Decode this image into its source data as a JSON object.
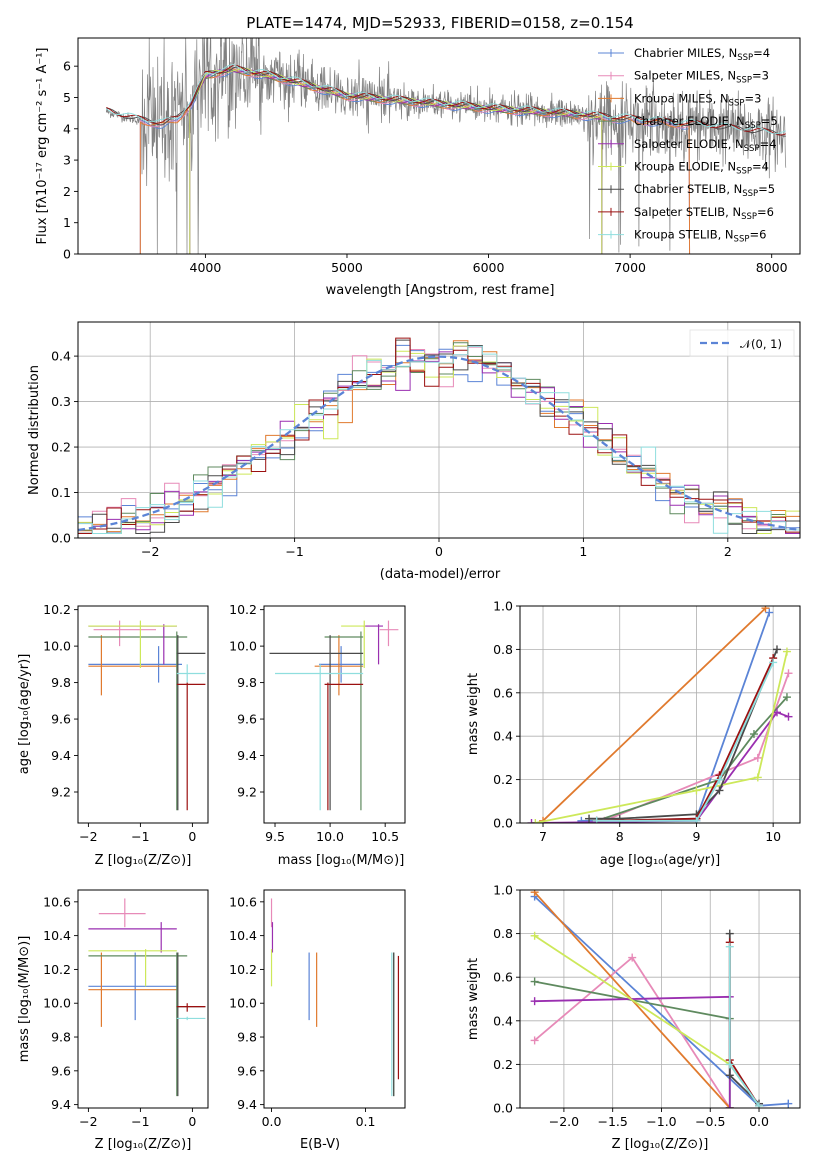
{
  "title": "PLATE=1474, MJD=52933, FIBERID=0158, z=0.154",
  "colors": {
    "Chabrier MILES": "#5b84d6",
    "Salpeter MILES": "#e78ab8",
    "Kroupa MILES": "#e07a2e",
    "Chabrier ELODIE": "#5f8a5f",
    "Salpeter ELODIE": "#9a2fb0",
    "Kroupa ELODIE": "#cde85a",
    "Chabrier STELIB": "#4a4a4a",
    "Salpeter STELIB": "#9b1010",
    "Kroupa STELIB": "#8fdede",
    "data": "#808080",
    "gaussian": "#5b84d6"
  },
  "chart_data": [
    {
      "id": "spectrum",
      "type": "line",
      "xlabel": "wavelength [Angstrom, rest frame]",
      "ylabel": "Flux [fλ10⁻¹⁷ erg cm⁻² s⁻¹ A⁻¹]",
      "xlim": [
        3100,
        8200
      ],
      "ylim": [
        0,
        6.9
      ],
      "xticks": [
        "4000",
        "5000",
        "6000",
        "7000",
        "8000"
      ],
      "yticks": [
        "0",
        "1",
        "2",
        "3",
        "4",
        "5",
        "6"
      ],
      "legend_position": "right",
      "legend": [
        {
          "base": "Chabrier MILES, N",
          "sub": "SSP",
          "tail": "=4",
          "color_key": "Chabrier MILES"
        },
        {
          "base": "Salpeter MILES, N",
          "sub": "SSP",
          "tail": "=3",
          "color_key": "Salpeter MILES"
        },
        {
          "base": "Kroupa MILES, N",
          "sub": "SSP",
          "tail": "=3",
          "color_key": "Kroupa MILES"
        },
        {
          "base": "Chabrier ELODIE, N",
          "sub": "SSP",
          "tail": "=5",
          "color_key": "Chabrier ELODIE"
        },
        {
          "base": "Salpeter ELODIE, N",
          "sub": "SSP",
          "tail": "=4",
          "color_key": "Salpeter ELODIE"
        },
        {
          "base": "Kroupa ELODIE, N",
          "sub": "SSP",
          "tail": "=4",
          "color_key": "Kroupa ELODIE"
        },
        {
          "base": "Chabrier STELIB, N",
          "sub": "SSP",
          "tail": "=5",
          "color_key": "Chabrier STELIB"
        },
        {
          "base": "Salpeter STELIB, N",
          "sub": "SSP",
          "tail": "=6",
          "color_key": "Salpeter STELIB"
        },
        {
          "base": "Kroupa STELIB, N",
          "sub": "SSP",
          "tail": "=6",
          "color_key": "Kroupa STELIB"
        }
      ],
      "continuum": [
        [
          3300,
          4.55
        ],
        [
          3500,
          4.3
        ],
        [
          3700,
          4.15
        ],
        [
          3800,
          4.3
        ],
        [
          3900,
          4.8
        ],
        [
          4000,
          5.7
        ],
        [
          4200,
          5.9
        ],
        [
          4500,
          5.65
        ],
        [
          4800,
          5.3
        ],
        [
          5000,
          5.05
        ],
        [
          5500,
          4.85
        ],
        [
          6000,
          4.65
        ],
        [
          6500,
          4.5
        ],
        [
          7000,
          4.3
        ],
        [
          7500,
          4.1
        ],
        [
          8000,
          3.85
        ],
        [
          8100,
          3.8
        ]
      ]
    },
    {
      "id": "residuals",
      "type": "bar",
      "xlabel": "(data-model)/error",
      "ylabel": "Normed distribution",
      "xlim": [
        -2.5,
        2.5
      ],
      "ylim": [
        0,
        0.475
      ],
      "xticks": [
        "−2",
        "−1",
        "0",
        "1",
        "2"
      ],
      "yticks": [
        "0.0",
        "0.1",
        "0.2",
        "0.3",
        "0.4"
      ],
      "legend": "𝒩(0, 1)",
      "grid": true
    },
    {
      "id": "age-vs-Z",
      "type": "scatter",
      "xlabel": "Z [log₁₀(Z/Z⊙)]",
      "ylabel": "age  [log₁₀(age/yr)]",
      "xlim": [
        -2.2,
        0.3
      ],
      "ylim": [
        9.03,
        10.22
      ],
      "xticks": [
        "−2",
        "−1",
        "0"
      ],
      "yticks": [
        "9.2",
        "9.4",
        "9.6",
        "9.8",
        "10.0",
        "10.2"
      ],
      "points": [
        {
          "c": "Chabrier MILES",
          "x": -0.65,
          "xl": -2.0,
          "xh": -0.2,
          "y": 9.9,
          "yl": 9.8,
          "yh": 10.0
        },
        {
          "c": "Salpeter MILES",
          "x": -1.4,
          "xl": -1.9,
          "xh": -0.7,
          "y": 10.09,
          "yl": 10.0,
          "yh": 10.14
        },
        {
          "c": "Kroupa MILES",
          "x": -1.75,
          "xl": -2.0,
          "xh": -0.3,
          "y": 9.89,
          "yl": 9.73,
          "yh": 10.06
        },
        {
          "c": "Chabrier ELODIE",
          "x": -0.3,
          "xl": -2.0,
          "xh": -0.1,
          "y": 10.05,
          "yl": 9.1,
          "yh": 10.08
        },
        {
          "c": "Salpeter ELODIE",
          "x": -0.55,
          "xl": -2.0,
          "xh": -0.3,
          "y": 10.11,
          "yl": 9.9,
          "yh": 10.12
        },
        {
          "c": "Kroupa ELODIE",
          "x": -1.0,
          "xl": -2.0,
          "xh": -0.3,
          "y": 10.11,
          "yl": 9.88,
          "yh": 10.14
        },
        {
          "c": "Chabrier STELIB",
          "x": -0.28,
          "xl": -0.3,
          "xh": 0.25,
          "y": 9.96,
          "yl": 9.1,
          "yh": 10.06
        },
        {
          "c": "Salpeter STELIB",
          "x": -0.1,
          "xl": -0.3,
          "xh": 0.25,
          "y": 9.79,
          "yl": 9.1,
          "yh": 9.8
        },
        {
          "c": "Kroupa STELIB",
          "x": -0.1,
          "xl": -0.3,
          "xh": 0.25,
          "y": 9.85,
          "yl": 9.8,
          "yh": 9.9
        }
      ]
    },
    {
      "id": "age-vs-mass",
      "type": "scatter",
      "xlabel": "mass [log₁₀(M/M⊙)]",
      "ylabel": "",
      "xlim": [
        9.4,
        10.68
      ],
      "ylim": [
        9.03,
        10.22
      ],
      "xticks": [
        "9.5",
        "10.0",
        "10.5"
      ],
      "yticks": [
        "9.2",
        "9.4",
        "9.6",
        "9.8",
        "10.0",
        "10.2"
      ],
      "points": [
        {
          "c": "Chabrier MILES",
          "x": 10.1,
          "xl": 9.9,
          "xh": 10.3,
          "y": 9.9,
          "yl": 9.8,
          "yh": 10.0
        },
        {
          "c": "Salpeter MILES",
          "x": 10.53,
          "xl": 10.45,
          "xh": 10.62,
          "y": 10.09,
          "yl": 10.0,
          "yh": 10.14
        },
        {
          "c": "Kroupa MILES",
          "x": 10.08,
          "xl": 9.86,
          "xh": 10.3,
          "y": 9.89,
          "yl": 9.73,
          "yh": 10.06
        },
        {
          "c": "Chabrier ELODIE",
          "x": 10.28,
          "xl": 9.95,
          "xh": 10.3,
          "y": 10.05,
          "yl": 9.1,
          "yh": 10.08
        },
        {
          "c": "Salpeter ELODIE",
          "x": 10.44,
          "xl": 10.3,
          "xh": 10.48,
          "y": 10.11,
          "yl": 9.9,
          "yh": 10.12
        },
        {
          "c": "Kroupa ELODIE",
          "x": 10.31,
          "xl": 10.1,
          "xh": 10.32,
          "y": 10.11,
          "yl": 9.88,
          "yh": 10.14
        },
        {
          "c": "Chabrier STELIB",
          "x": 10.0,
          "xl": 9.45,
          "xh": 10.3,
          "y": 9.96,
          "yl": 9.1,
          "yh": 10.06
        },
        {
          "c": "Salpeter STELIB",
          "x": 9.98,
          "xl": 9.95,
          "xh": 10.3,
          "y": 9.79,
          "yl": 9.1,
          "yh": 9.8
        },
        {
          "c": "Kroupa STELIB",
          "x": 9.91,
          "xl": 9.5,
          "xh": 10.3,
          "y": 9.85,
          "yl": 9.1,
          "yh": 9.9
        }
      ]
    },
    {
      "id": "weight-vs-age",
      "type": "line",
      "xlabel": "age  [log₁₀(age/yr)]",
      "ylabel": "mass weight",
      "xlim": [
        6.7,
        10.35
      ],
      "ylim": [
        0,
        1
      ],
      "xticks": [
        "7",
        "8",
        "9",
        "10"
      ],
      "yticks": [
        "0.0",
        "0.2",
        "0.4",
        "0.6",
        "0.8",
        "1.0"
      ],
      "grid": true,
      "series": [
        {
          "c": "Chabrier MILES",
          "points": [
            [
              7.5,
              0.01
            ],
            [
              8.0,
              0.01
            ],
            [
              9.0,
              0.02
            ],
            [
              9.95,
              0.97
            ]
          ]
        },
        {
          "c": "Salpeter MILES",
          "points": [
            [
              7.8,
              0.01
            ],
            [
              9.8,
              0.3
            ],
            [
              10.2,
              0.69
            ]
          ]
        },
        {
          "c": "Kroupa MILES",
          "points": [
            [
              7.0,
              0.01
            ],
            [
              9.9,
              0.99
            ]
          ]
        },
        {
          "c": "Chabrier ELODIE",
          "points": [
            [
              7.7,
              0.01
            ],
            [
              9.3,
              0.2
            ],
            [
              9.75,
              0.41
            ],
            [
              10.18,
              0.58
            ]
          ]
        },
        {
          "c": "Salpeter ELODIE",
          "points": [
            [
              6.85,
              0.0
            ],
            [
              9.0,
              0.01
            ],
            [
              10.05,
              0.51
            ],
            [
              10.2,
              0.49
            ]
          ]
        },
        {
          "c": "Kroupa ELODIE",
          "points": [
            [
              6.9,
              0.0
            ],
            [
              9.0,
              0.15
            ],
            [
              9.8,
              0.21
            ],
            [
              10.18,
              0.79
            ]
          ]
        },
        {
          "c": "Chabrier STELIB",
          "points": [
            [
              7.6,
              0.02
            ],
            [
              8.0,
              0.02
            ],
            [
              9.0,
              0.04
            ],
            [
              9.3,
              0.15
            ],
            [
              10.05,
              0.8
            ]
          ]
        },
        {
          "c": "Salpeter STELIB",
          "points": [
            [
              7.7,
              0.01
            ],
            [
              9.0,
              0.02
            ],
            [
              9.3,
              0.22
            ],
            [
              10.0,
              0.76
            ]
          ]
        },
        {
          "c": "Kroupa STELIB",
          "points": [
            [
              7.7,
              0.01
            ],
            [
              9.0,
              0.01
            ],
            [
              9.3,
              0.2
            ],
            [
              10.0,
              0.74
            ]
          ]
        }
      ]
    },
    {
      "id": "mass-vs-Z",
      "type": "scatter",
      "xlabel": "Z [log₁₀(Z/Z⊙)]",
      "ylabel": "mass [log₁₀(M/M⊙)]",
      "xlim": [
        -2.2,
        0.3
      ],
      "ylim": [
        9.38,
        10.67
      ],
      "xticks": [
        "−2",
        "−1",
        "0"
      ],
      "yticks": [
        "9.4",
        "9.6",
        "9.8",
        "10.0",
        "10.2",
        "10.4",
        "10.6"
      ],
      "points": [
        {
          "c": "Chabrier MILES",
          "x": -1.1,
          "xl": -2.0,
          "xh": -0.3,
          "y": 10.1,
          "yl": 9.9,
          "yh": 10.3
        },
        {
          "c": "Salpeter MILES",
          "x": -1.3,
          "xl": -1.8,
          "xh": -0.9,
          "y": 10.53,
          "yl": 10.45,
          "yh": 10.62
        },
        {
          "c": "Kroupa MILES",
          "x": -1.75,
          "xl": -2.0,
          "xh": -0.3,
          "y": 10.08,
          "yl": 9.86,
          "yh": 10.3
        },
        {
          "c": "Chabrier ELODIE",
          "x": -0.3,
          "xl": -2.0,
          "xh": -0.1,
          "y": 10.28,
          "yl": 9.45,
          "yh": 10.3
        },
        {
          "c": "Salpeter ELODIE",
          "x": -0.6,
          "xl": -2.0,
          "xh": -0.3,
          "y": 10.44,
          "yl": 10.3,
          "yh": 10.48
        },
        {
          "c": "Kroupa ELODIE",
          "x": -0.9,
          "xl": -2.0,
          "xh": -0.3,
          "y": 10.31,
          "yl": 10.1,
          "yh": 10.32
        },
        {
          "c": "Chabrier STELIB",
          "x": -0.28,
          "xl": -0.3,
          "xh": 0.25,
          "y": 9.98,
          "yl": 9.45,
          "yh": 10.3
        },
        {
          "c": "Salpeter STELIB",
          "x": -0.1,
          "xl": -0.3,
          "xh": 0.25,
          "y": 9.98,
          "yl": 9.95,
          "yh": 10.0
        },
        {
          "c": "Kroupa STELIB",
          "x": -0.1,
          "xl": -0.3,
          "xh": 0.25,
          "y": 9.91,
          "yl": 9.9,
          "yh": 9.92
        }
      ]
    },
    {
      "id": "mass-vs-ebv",
      "type": "scatter",
      "xlabel": "E(B-V)",
      "ylabel": "",
      "xlim": [
        -0.008,
        0.142
      ],
      "ylim": [
        9.38,
        10.67
      ],
      "xticks": [
        "0.0",
        "0.1"
      ],
      "yticks": [
        "9.4",
        "9.6",
        "9.8",
        "10.0",
        "10.2",
        "10.4",
        "10.6"
      ],
      "points": [
        {
          "c": "Chabrier MILES",
          "x": 0.04,
          "y": 10.1,
          "yl": 9.9,
          "yh": 10.3
        },
        {
          "c": "Salpeter MILES",
          "x": 0.0,
          "y": 10.53,
          "yl": 10.45,
          "yh": 10.62
        },
        {
          "c": "Kroupa MILES",
          "x": 0.048,
          "y": 10.08,
          "yl": 9.86,
          "yh": 10.3
        },
        {
          "c": "Chabrier ELODIE",
          "x": 0.13,
          "y": 10.28,
          "yl": 9.45,
          "yh": 10.3
        },
        {
          "c": "Salpeter ELODIE",
          "x": 0.001,
          "y": 10.44,
          "yl": 10.3,
          "yh": 10.48
        },
        {
          "c": "Kroupa ELODIE",
          "x": 0.0,
          "y": 10.31,
          "yl": 10.1,
          "yh": 10.32
        },
        {
          "c": "Chabrier STELIB",
          "x": 0.13,
          "y": 9.98,
          "yl": 9.45,
          "yh": 10.3
        },
        {
          "c": "Salpeter STELIB",
          "x": 0.135,
          "y": 9.98,
          "yl": 9.55,
          "yh": 10.28
        },
        {
          "c": "Kroupa STELIB",
          "x": 0.128,
          "y": 9.91,
          "yl": 9.45,
          "yh": 10.3
        }
      ]
    },
    {
      "id": "weight-vs-Z",
      "type": "line",
      "xlabel": "Z [log₁₀(Z/Z⊙)]",
      "ylabel": "mass weight",
      "xlim": [
        -2.45,
        0.42
      ],
      "ylim": [
        0,
        1
      ],
      "xticks": [
        "−2.0",
        "−1.5",
        "−1.0",
        "−0.5",
        "0.0"
      ],
      "yticks": [
        "0.0",
        "0.2",
        "0.4",
        "0.6",
        "0.8",
        "1.0"
      ],
      "grid": true,
      "series": [
        {
          "c": "Chabrier MILES",
          "points": [
            [
              -2.3,
              0.97
            ],
            [
              0.0,
              0.01
            ],
            [
              0.3,
              0.02
            ]
          ]
        },
        {
          "c": "Salpeter MILES",
          "points": [
            [
              -2.3,
              0.31
            ],
            [
              -1.3,
              0.69
            ],
            [
              -0.3,
              0.0
            ]
          ]
        },
        {
          "c": "Kroupa MILES",
          "points": [
            [
              -2.3,
              0.99
            ],
            [
              -0.3,
              0.0
            ]
          ]
        },
        {
          "c": "Chabrier ELODIE",
          "points": [
            [
              -2.3,
              0.58
            ],
            [
              -0.3,
              0.41
            ],
            [
              -0.3,
              0.0
            ]
          ]
        },
        {
          "c": "Salpeter ELODIE",
          "points": [
            [
              -2.3,
              0.49
            ],
            [
              -0.3,
              0.51
            ],
            [
              -0.3,
              0.0
            ]
          ]
        },
        {
          "c": "Kroupa ELODIE",
          "points": [
            [
              -2.3,
              0.79
            ],
            [
              -0.3,
              0.2
            ],
            [
              0.0,
              0.01
            ]
          ]
        },
        {
          "c": "Chabrier STELIB",
          "points": [
            [
              -0.3,
              0.8
            ],
            [
              -0.3,
              0.15
            ],
            [
              0.0,
              0.02
            ]
          ]
        },
        {
          "c": "Salpeter STELIB",
          "points": [
            [
              -0.3,
              0.76
            ],
            [
              -0.3,
              0.22
            ],
            [
              0.0,
              0.01
            ]
          ]
        },
        {
          "c": "Kroupa STELIB",
          "points": [
            [
              -0.3,
              0.74
            ],
            [
              -0.3,
              0.2
            ],
            [
              0.0,
              0.01
            ]
          ]
        }
      ]
    }
  ]
}
